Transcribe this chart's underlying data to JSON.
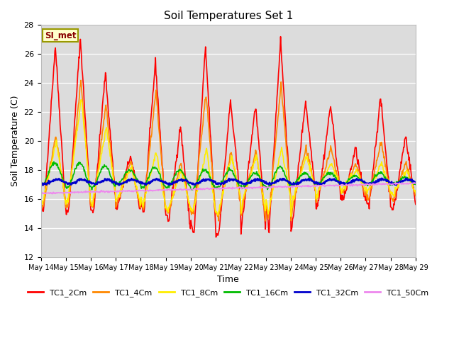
{
  "title": "Soil Temperatures Set 1",
  "xlabel": "Time",
  "ylabel": "Soil Temperature (C)",
  "ylim": [
    12,
    28
  ],
  "yticks": [
    12,
    14,
    16,
    18,
    20,
    22,
    24,
    26,
    28
  ],
  "annotation": "SI_met",
  "bg_color": "#dcdcdc",
  "series_colors": {
    "TC1_2Cm": "#ff0000",
    "TC1_4Cm": "#ff8800",
    "TC1_8Cm": "#ffee00",
    "TC1_16Cm": "#00bb00",
    "TC1_32Cm": "#0000cc",
    "TC1_50Cm": "#ee88ee"
  },
  "series_linewidths": {
    "TC1_2Cm": 1.2,
    "TC1_4Cm": 1.2,
    "TC1_8Cm": 1.2,
    "TC1_16Cm": 1.2,
    "TC1_32Cm": 1.8,
    "TC1_50Cm": 1.2
  },
  "x_tick_days": [
    14,
    15,
    16,
    17,
    18,
    19,
    20,
    21,
    22,
    23,
    24,
    25,
    26,
    27,
    28,
    29
  ],
  "x_tick_labels": [
    "May 14",
    "May 15",
    "May 16",
    "May 17",
    "May 18",
    "May 19",
    "May 20",
    "May 21",
    "May 22",
    "May 23",
    "May 24",
    "May 25",
    "May 26",
    "May 27",
    "May 28",
    "May 29"
  ],
  "peak_heights_2cm": [
    26.6,
    27.1,
    24.7,
    19.0,
    25.5,
    21.1,
    26.5,
    22.8,
    22.5,
    27.0,
    22.8,
    22.5,
    19.5,
    23.0,
    20.4
  ],
  "trough_depths_2cm": [
    15.2,
    15.2,
    15.3,
    15.8,
    15.0,
    14.5,
    13.5,
    13.7,
    15.5,
    13.8,
    15.3,
    16.2,
    16.0,
    15.5,
    15.4
  ],
  "peak_heights_4cm": [
    20.5,
    24.2,
    22.5,
    18.5,
    23.5,
    18.5,
    23.3,
    19.2,
    19.3,
    24.0,
    19.5,
    19.5,
    18.5,
    20.0,
    18.5
  ],
  "trough_depths_4cm": [
    15.5,
    15.5,
    15.5,
    16.0,
    15.2,
    15.0,
    15.0,
    14.8,
    15.8,
    14.5,
    15.8,
    16.5,
    16.5,
    16.0,
    16.0
  ],
  "peak_heights_8cm": [
    20.0,
    23.0,
    21.0,
    18.2,
    19.3,
    18.0,
    19.4,
    19.0,
    19.0,
    19.5,
    19.0,
    18.5,
    18.0,
    18.5,
    18.0
  ],
  "trough_depths_8cm": [
    15.8,
    15.8,
    15.8,
    16.2,
    15.5,
    15.2,
    15.2,
    15.0,
    16.0,
    15.0,
    16.0,
    16.5,
    16.8,
    16.5,
    16.3
  ],
  "peak_heights_16cm": [
    18.5,
    18.5,
    18.3,
    18.0,
    18.2,
    18.0,
    18.0,
    18.0,
    17.8,
    18.2,
    17.8,
    17.8,
    17.6,
    17.8,
    17.5
  ],
  "trough_depths_16cm": [
    17.0,
    16.8,
    16.8,
    17.0,
    16.8,
    16.8,
    16.7,
    16.8,
    16.8,
    16.8,
    17.0,
    17.0,
    17.0,
    17.0,
    17.0
  ],
  "tc32_base": 17.2,
  "tc50_start": 16.4,
  "tc50_end": 17.1
}
